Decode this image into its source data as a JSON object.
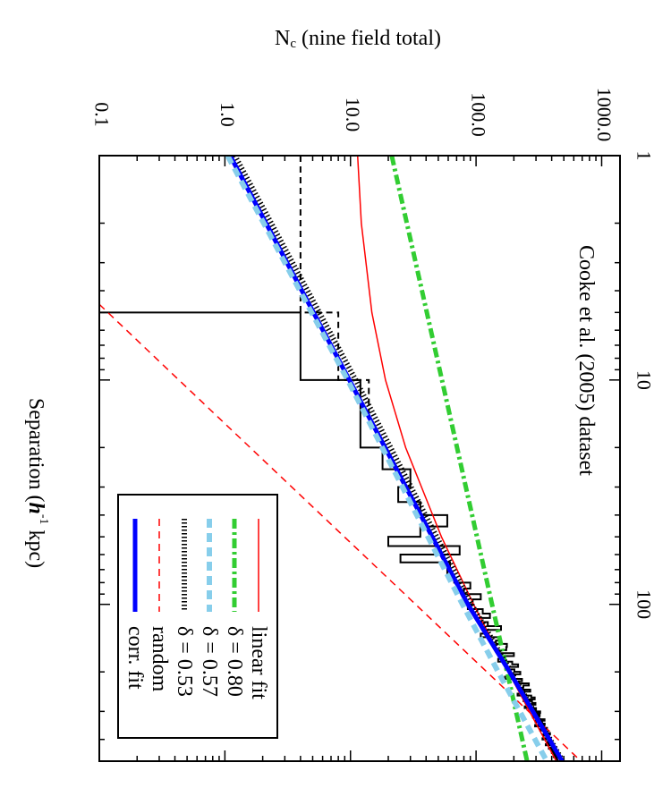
{
  "chart_data": {
    "type": "line",
    "annotation": "Cooke et al. (2005) dataset",
    "orientation": "rotated 90 degrees clockwise",
    "x_axis": {
      "label": {
        "pre": "Separation (",
        "h": "h",
        "sup": "-1",
        "post": " kpc)"
      },
      "scale": "log",
      "range": [
        1,
        500
      ],
      "ticks": [
        1,
        10,
        100
      ],
      "tick_labels": [
        "1",
        "10",
        "100"
      ]
    },
    "y_axis": {
      "label": {
        "main": "N",
        "sub": "c",
        "post": " (nine field total)"
      },
      "scale": "log",
      "range": [
        0.1,
        1400
      ],
      "ticks": [
        0.1,
        1,
        10,
        100,
        1000
      ],
      "tick_labels": [
        "0.1",
        "1.0",
        "10.0",
        "100.0",
        "1000.0"
      ]
    },
    "grid": false,
    "legend_placement": "bottom-left",
    "series": [
      {
        "name": "linear fit",
        "color": "#ff0000",
        "style": "solid-thin",
        "points": [
          [
            1,
            11.4
          ],
          [
            2,
            12.2
          ],
          [
            5,
            14.8
          ],
          [
            10,
            19
          ],
          [
            20,
            27.5
          ],
          [
            50,
            53
          ],
          [
            100,
            95.5
          ],
          [
            200,
            180.5
          ],
          [
            500,
            435.5
          ]
        ]
      },
      {
        "name": "δ = 0.80",
        "color": "#32cd32",
        "style": "dash-dot-thick",
        "points": [
          [
            1,
            21.3
          ],
          [
            10,
            53.5
          ],
          [
            100,
            134
          ],
          [
            500,
            255
          ]
        ]
      },
      {
        "name": "δ = 0.57",
        "color": "#87ceeb",
        "style": "dashed-thick",
        "points": [
          [
            1,
            1.05
          ],
          [
            10,
            9.5
          ],
          [
            100,
            78
          ],
          [
            200,
            150
          ],
          [
            500,
            366
          ]
        ]
      },
      {
        "name": "δ = 0.53",
        "color": "#000000",
        "style": "dotted-thick",
        "points": [
          [
            1,
            1.2
          ],
          [
            10,
            11
          ],
          [
            100,
            92
          ],
          [
            200,
            190
          ],
          [
            500,
            490
          ]
        ]
      },
      {
        "name": "random",
        "color": "#ff0000",
        "style": "dashed-thin",
        "points": [
          [
            4.6,
            0.1
          ],
          [
            10,
            0.43
          ],
          [
            500,
            685
          ]
        ]
      },
      {
        "name": "corr. fit",
        "color": "#0000ff",
        "style": "solid-thick",
        "points": [
          [
            1,
            1.1
          ],
          [
            10,
            9.8
          ],
          [
            100,
            86
          ],
          [
            200,
            185
          ],
          [
            500,
            485
          ]
        ]
      }
    ],
    "histograms": [
      {
        "style": "solid",
        "color": "#000000",
        "bin_width": 5,
        "bin_start": 5,
        "values": [
          4,
          12,
          12,
          18,
          30,
          24,
          36,
          59,
          36,
          20,
          74,
          25,
          62,
          59,
          67,
          90,
          80,
          109,
          94,
          86,
          113,
          129,
          104,
          124,
          158,
          123,
          109,
          151,
          144,
          176,
          174,
          151,
          200,
          168,
          150,
          194,
          216,
          171,
          202,
          225,
          194,
          170,
          232,
          218,
          263,
          238,
          222,
          270,
          243,
          214,
          275,
          293,
          239,
          279,
          297,
          265,
          244,
          300,
          292,
          324,
          288,
          321,
          284,
          317,
          351,
          297,
          332,
          352,
          295,
          347,
          367,
          324,
          361,
          350,
          388,
          342,
          381,
          369,
          338,
          396,
          383,
          369,
          411,
          359,
          402,
          426,
          380,
          416,
          400,
          437,
          401,
          435,
          419,
          440,
          415,
          445,
          437,
          432,
          446
        ]
      },
      {
        "style": "dashed",
        "color": "#000000",
        "bin_width": 5,
        "bin_start": 0,
        "values": [
          4,
          8,
          14
        ]
      }
    ]
  }
}
